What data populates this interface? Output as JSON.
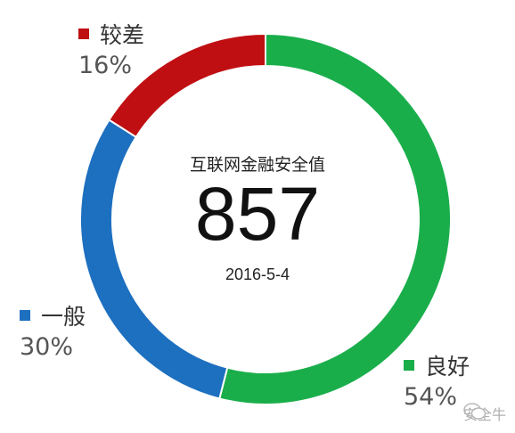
{
  "chart_data": {
    "type": "pie",
    "center_title": "互联网金融安全值",
    "center_value": "857",
    "center_date": "2016-5-4",
    "slices": [
      {
        "name": "良好",
        "percent": 54,
        "label": "54%",
        "color": "#1aae4b"
      },
      {
        "name": "一般",
        "percent": 30,
        "label": "30%",
        "color": "#1d6fbf"
      },
      {
        "name": "较差",
        "percent": 16,
        "label": "16%",
        "color": "#c00f12"
      }
    ]
  },
  "watermark": {
    "text": "安全牛",
    "icon": "wechat-icon"
  }
}
